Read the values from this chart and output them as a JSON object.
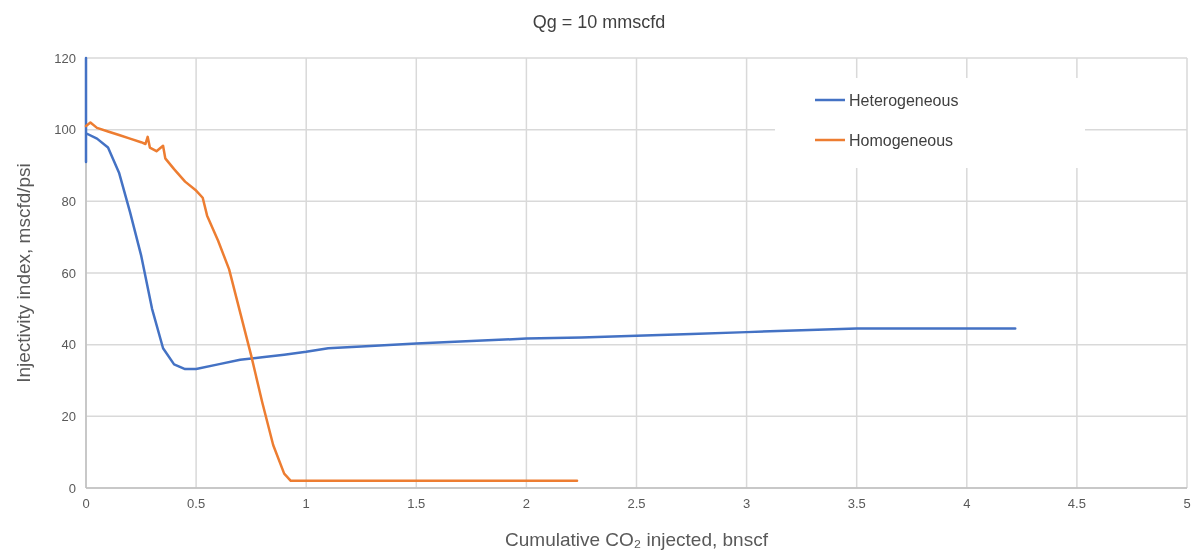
{
  "chart_data": {
    "type": "line",
    "title": "Qg = 10 mmscfd",
    "xlabel": "Cumulative CO₂ injected, bnscf",
    "ylabel": "Injectivity index, mscfd/psi",
    "xlim": [
      0,
      5
    ],
    "xticks": [
      0,
      0.5,
      1,
      1.5,
      2,
      2.5,
      3,
      3.5,
      4,
      4.5,
      5
    ],
    "ylim": [
      0,
      120
    ],
    "yticks": [
      0,
      20,
      40,
      60,
      80,
      100,
      120
    ],
    "grid": true,
    "legend": "top right",
    "series": [
      {
        "name": "Heterogeneous",
        "color": "#4472c4",
        "x": [
          0,
          0,
          0,
          0.05,
          0.1,
          0.15,
          0.2,
          0.25,
          0.3,
          0.35,
          0.4,
          0.45,
          0.5,
          0.6,
          0.7,
          0.8,
          0.9,
          1,
          1.1,
          1.25,
          1.5,
          1.75,
          2,
          2.25,
          2.5,
          2.75,
          3,
          3.25,
          3.5,
          3.75,
          4,
          4.22
        ],
        "values": [
          91,
          120,
          99,
          97.5,
          95,
          88,
          77,
          65,
          50,
          39,
          34.5,
          33.2,
          33.2,
          34.5,
          35.8,
          36.5,
          37.2,
          38,
          39,
          39.5,
          40.3,
          41,
          41.7,
          42,
          42.5,
          43,
          43.5,
          44,
          44.5,
          44.5,
          44.5,
          44.5
        ]
      },
      {
        "name": "Homogeneous",
        "color": "#ed7d31",
        "x": [
          0,
          0.02,
          0.05,
          0.1,
          0.15,
          0.2,
          0.25,
          0.27,
          0.28,
          0.29,
          0.32,
          0.35,
          0.36,
          0.4,
          0.45,
          0.5,
          0.53,
          0.55,
          0.6,
          0.65,
          0.7,
          0.75,
          0.8,
          0.85,
          0.9,
          0.93,
          1,
          1.5,
          2,
          2.23
        ],
        "values": [
          101,
          102,
          100.5,
          99.5,
          98.5,
          97.5,
          96.5,
          96,
          98,
          95,
          94,
          95.5,
          92,
          89,
          85.5,
          83,
          81,
          76,
          69,
          61,
          49,
          37,
          24,
          12,
          4,
          2,
          2,
          2,
          2,
          2
        ]
      }
    ]
  }
}
